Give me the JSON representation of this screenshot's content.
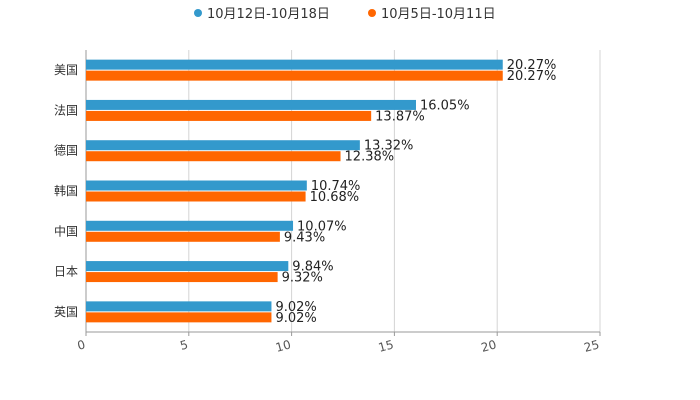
{
  "chart_data": {
    "type": "bar",
    "orientation": "horizontal",
    "title": "",
    "xlabel": "",
    "ylabel": "",
    "xlim": [
      0,
      25
    ],
    "xticks": [
      0,
      5,
      10,
      15,
      20,
      25
    ],
    "xtick_labels": [
      "0",
      "5",
      "10",
      "15",
      "20",
      "25"
    ],
    "grid": true,
    "legend_position": "top-center",
    "categories": [
      "美国",
      "法国",
      "德国",
      "韩国",
      "中国",
      "日本",
      "英国"
    ],
    "series": [
      {
        "name": "10月12日-10月18日",
        "color": "#3399cc",
        "values": [
          20.27,
          16.05,
          13.32,
          10.74,
          10.07,
          9.84,
          9.02
        ],
        "labels": [
          "20.27%",
          "16.05%",
          "13.32%",
          "10.74%",
          "10.07%",
          "9.84%",
          "9.02%"
        ]
      },
      {
        "name": "10月5日-10月11日",
        "color": "#ff6600",
        "values": [
          20.27,
          13.87,
          12.38,
          10.68,
          9.43,
          9.32,
          9.02
        ],
        "labels": [
          "20.27%",
          "13.87%",
          "12.38%",
          "10.68%",
          "9.43%",
          "9.32%",
          "9.02%"
        ]
      }
    ]
  }
}
